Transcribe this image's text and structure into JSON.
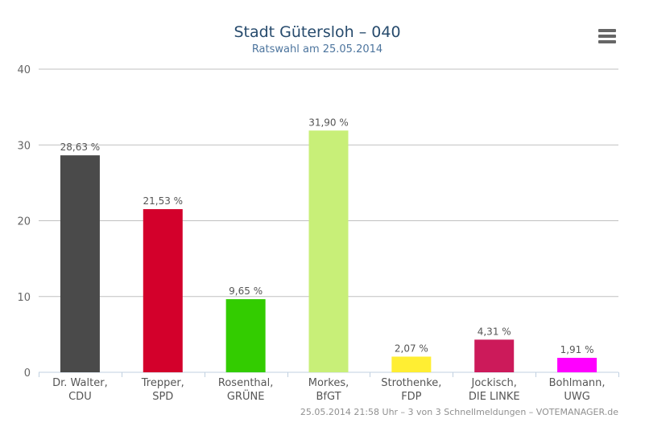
{
  "chart_data": {
    "type": "bar",
    "title": "Stadt Gütersloh – 040",
    "subtitle": "Ratswahl am 25.05.2014",
    "categories": [
      [
        "Dr. Walter,",
        "CDU"
      ],
      [
        "Trepper,",
        "SPD"
      ],
      [
        "Rosenthal,",
        "GRÜNE"
      ],
      [
        "Morkes,",
        "BfGT"
      ],
      [
        "Strothenke,",
        "FDP"
      ],
      [
        "Jockisch,",
        "DIE LINKE"
      ],
      [
        "Bohlmann,",
        "UWG"
      ]
    ],
    "values": [
      28.63,
      21.53,
      9.65,
      31.9,
      2.07,
      4.31,
      1.91
    ],
    "data_labels": [
      "28,63 %",
      "21,53 %",
      "9,65 %",
      "31,90 %",
      "2,07 %",
      "4,31 %",
      "1,91 %"
    ],
    "colors": [
      "#4a4a4a",
      "#d3002b",
      "#33cc00",
      "#c8ef78",
      "#ffee33",
      "#cc1a5a",
      "#ff00ff"
    ],
    "ylim": [
      0,
      40
    ],
    "yticks": [
      "0",
      "10",
      "20",
      "30",
      "40"
    ],
    "grid": true,
    "legend": "none"
  },
  "credits": "25.05.2014 21:58 Uhr – 3 von 3 Schnellmeldungen – VOTEMANAGER.de",
  "icons": {
    "menu": "menu-icon"
  }
}
